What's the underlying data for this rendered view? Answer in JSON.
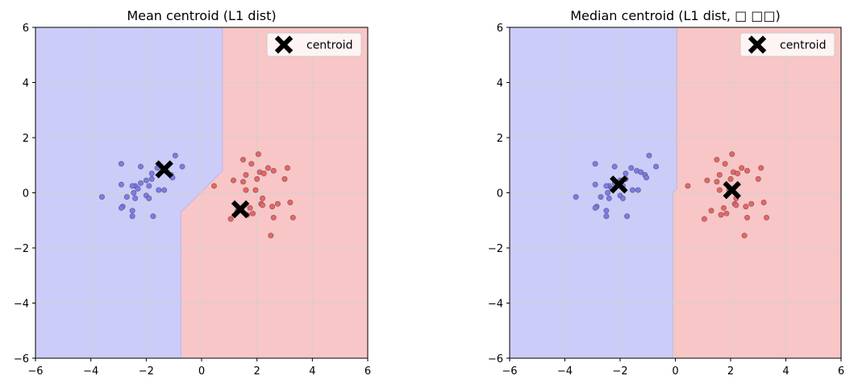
{
  "colors": {
    "class0_region": "#ccccf8",
    "class1_region": "#f8c6c6",
    "class0_point": "#7b7bea",
    "class1_point": "#e86565",
    "grid": "#cfcfcf",
    "centroid": "#000000"
  },
  "chart_data": [
    {
      "type": "scatter",
      "title": "Mean centroid (L1 dist)",
      "xlabel": "",
      "ylabel": "",
      "xlim": [
        -6,
        6
      ],
      "ylim": [
        -6,
        6
      ],
      "xticks": [
        -6,
        -4,
        -2,
        0,
        2,
        4,
        6
      ],
      "yticks": [
        -6,
        -4,
        -2,
        0,
        2,
        4,
        6
      ],
      "grid": true,
      "legend": {
        "placement": "upper right",
        "entries": [
          "centroid"
        ]
      },
      "decision_boundary": [
        [
          0.75,
          6
        ],
        [
          0.75,
          0.8
        ],
        [
          -0.75,
          -0.7
        ],
        [
          -0.75,
          -6
        ]
      ],
      "centroids": [
        [
          -1.35,
          0.85
        ],
        [
          1.4,
          -0.6
        ]
      ],
      "series": [
        {
          "class": 0,
          "points": [
            [
              -2.9,
              1.05
            ],
            [
              -2.2,
              0.95
            ],
            [
              -1.8,
              0.7
            ],
            [
              -1.6,
              0.9
            ],
            [
              -1.4,
              0.8
            ],
            [
              -1.1,
              0.65
            ],
            [
              -0.95,
              1.35
            ],
            [
              -0.7,
              0.95
            ],
            [
              -1.05,
              0.55
            ],
            [
              -1.25,
              0.75
            ],
            [
              -2.0,
              0.45
            ],
            [
              -2.2,
              0.35
            ],
            [
              -1.8,
              0.5
            ],
            [
              -1.9,
              0.25
            ],
            [
              -2.4,
              0.25
            ],
            [
              -2.5,
              0.25
            ],
            [
              -2.3,
              0.15
            ],
            [
              -2.9,
              0.3
            ],
            [
              -2.7,
              -0.15
            ],
            [
              -2.45,
              0.0
            ],
            [
              -2.4,
              -0.2
            ],
            [
              -2.0,
              -0.1
            ],
            [
              -1.9,
              -0.2
            ],
            [
              -1.55,
              0.1
            ],
            [
              -1.35,
              0.1
            ],
            [
              -2.5,
              -0.65
            ],
            [
              -2.5,
              -0.85
            ],
            [
              -1.75,
              -0.85
            ],
            [
              -2.85,
              -0.5
            ],
            [
              -2.9,
              -0.55
            ],
            [
              -3.6,
              -0.15
            ]
          ]
        },
        {
          "class": 1,
          "points": [
            [
              2.05,
              1.4
            ],
            [
              1.5,
              1.2
            ],
            [
              1.8,
              1.05
            ],
            [
              3.1,
              0.9
            ],
            [
              2.4,
              0.9
            ],
            [
              2.6,
              0.8
            ],
            [
              2.1,
              0.75
            ],
            [
              2.25,
              0.7
            ],
            [
              1.6,
              0.65
            ],
            [
              2.0,
              0.5
            ],
            [
              1.15,
              0.45
            ],
            [
              1.5,
              0.4
            ],
            [
              3.0,
              0.5
            ],
            [
              0.45,
              0.25
            ],
            [
              1.95,
              0.1
            ],
            [
              1.6,
              0.1
            ],
            [
              2.2,
              -0.2
            ],
            [
              2.15,
              -0.4
            ],
            [
              2.2,
              -0.45
            ],
            [
              2.55,
              -0.5
            ],
            [
              2.75,
              -0.4
            ],
            [
              3.2,
              -0.35
            ],
            [
              1.75,
              -0.55
            ],
            [
              1.3,
              -0.65
            ],
            [
              1.85,
              -0.75
            ],
            [
              1.65,
              -0.8
            ],
            [
              1.05,
              -0.95
            ],
            [
              2.6,
              -0.9
            ],
            [
              3.3,
              -0.9
            ],
            [
              2.5,
              -1.55
            ]
          ]
        }
      ]
    },
    {
      "type": "scatter",
      "title": "Median centroid (L1 dist, □ □□)",
      "xlabel": "",
      "ylabel": "",
      "xlim": [
        -6,
        6
      ],
      "ylim": [
        -6,
        6
      ],
      "xticks": [
        -6,
        -4,
        -2,
        0,
        2,
        4,
        6
      ],
      "yticks": [
        -6,
        -4,
        -2,
        0,
        2,
        4,
        6
      ],
      "grid": true,
      "legend": {
        "placement": "upper right",
        "entries": [
          "centroid"
        ]
      },
      "decision_boundary": [
        [
          0.05,
          6
        ],
        [
          0.05,
          0.15
        ],
        [
          -0.1,
          0.0
        ],
        [
          -0.1,
          -6
        ]
      ],
      "centroids": [
        [
          -2.05,
          0.3
        ],
        [
          2.05,
          0.1
        ]
      ],
      "series": [
        {
          "class": 0,
          "points": [
            [
              -2.9,
              1.05
            ],
            [
              -2.2,
              0.95
            ],
            [
              -1.8,
              0.7
            ],
            [
              -1.6,
              0.9
            ],
            [
              -1.4,
              0.8
            ],
            [
              -1.1,
              0.65
            ],
            [
              -0.95,
              1.35
            ],
            [
              -0.7,
              0.95
            ],
            [
              -1.05,
              0.55
            ],
            [
              -1.25,
              0.75
            ],
            [
              -2.0,
              0.45
            ],
            [
              -2.2,
              0.35
            ],
            [
              -1.8,
              0.5
            ],
            [
              -1.9,
              0.25
            ],
            [
              -2.4,
              0.25
            ],
            [
              -2.5,
              0.25
            ],
            [
              -2.3,
              0.15
            ],
            [
              -2.9,
              0.3
            ],
            [
              -2.7,
              -0.15
            ],
            [
              -2.45,
              0.0
            ],
            [
              -2.4,
              -0.2
            ],
            [
              -2.0,
              -0.1
            ],
            [
              -1.9,
              -0.2
            ],
            [
              -1.55,
              0.1
            ],
            [
              -1.35,
              0.1
            ],
            [
              -2.5,
              -0.65
            ],
            [
              -2.5,
              -0.85
            ],
            [
              -1.75,
              -0.85
            ],
            [
              -2.85,
              -0.5
            ],
            [
              -2.9,
              -0.55
            ],
            [
              -3.6,
              -0.15
            ]
          ]
        },
        {
          "class": 1,
          "points": [
            [
              2.05,
              1.4
            ],
            [
              1.5,
              1.2
            ],
            [
              1.8,
              1.05
            ],
            [
              3.1,
              0.9
            ],
            [
              2.4,
              0.9
            ],
            [
              2.6,
              0.8
            ],
            [
              2.1,
              0.75
            ],
            [
              2.25,
              0.7
            ],
            [
              1.6,
              0.65
            ],
            [
              2.0,
              0.5
            ],
            [
              1.15,
              0.45
            ],
            [
              1.5,
              0.4
            ],
            [
              3.0,
              0.5
            ],
            [
              0.45,
              0.25
            ],
            [
              1.95,
              0.1
            ],
            [
              1.6,
              0.1
            ],
            [
              2.2,
              -0.2
            ],
            [
              2.15,
              -0.4
            ],
            [
              2.2,
              -0.45
            ],
            [
              2.55,
              -0.5
            ],
            [
              2.75,
              -0.4
            ],
            [
              3.2,
              -0.35
            ],
            [
              1.75,
              -0.55
            ],
            [
              1.3,
              -0.65
            ],
            [
              1.85,
              -0.75
            ],
            [
              1.65,
              -0.8
            ],
            [
              1.05,
              -0.95
            ],
            [
              2.6,
              -0.9
            ],
            [
              3.3,
              -0.9
            ],
            [
              2.5,
              -1.55
            ]
          ]
        }
      ]
    }
  ]
}
